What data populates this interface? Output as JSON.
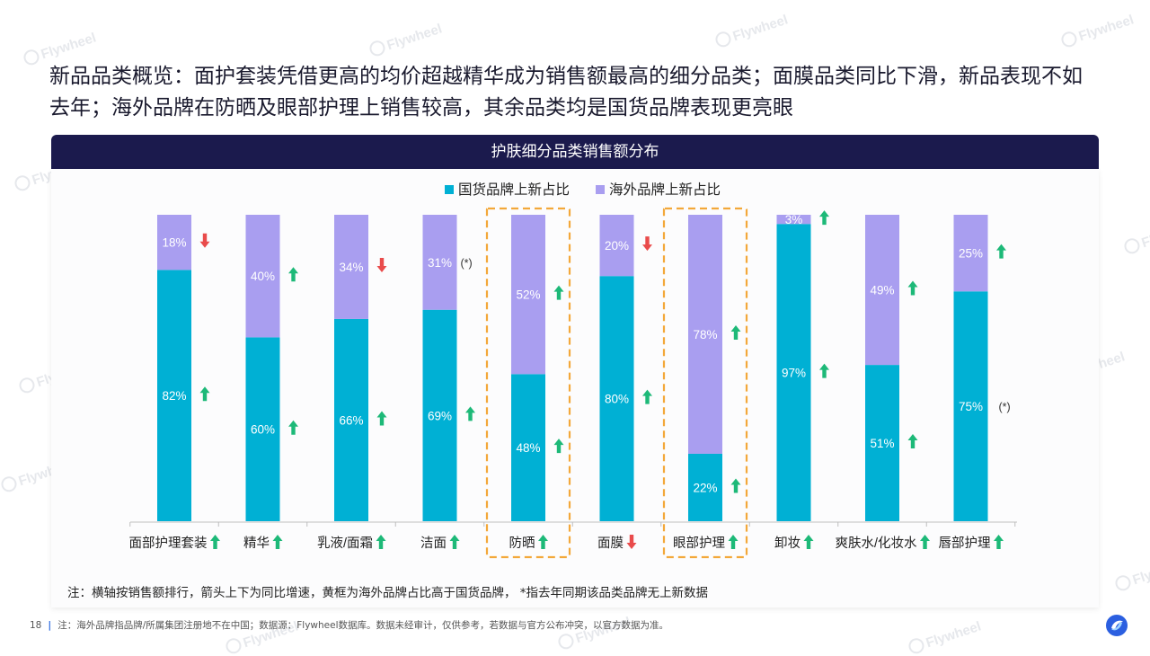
{
  "headline": "新品品类概览：面护套装凭借更高的均价超越精华成为销售额最高的细分品类；面膜品类同比下滑，新品表现不如去年；海外品牌在防晒及眼部护理上销售较高，其余品类均是国货品牌表现更亮眼",
  "watermark_text": "Flywheel",
  "chart_data": {
    "type": "bar",
    "stacked": true,
    "title": "护肤细分品类销售额分布",
    "legend_position": "top-center",
    "categories": [
      "面部护理套装",
      "精华",
      "乳液/面霜",
      "洁面",
      "防晒",
      "面膜",
      "眼部护理",
      "卸妆",
      "爽肤水/化妆水",
      "唇部护理"
    ],
    "category_arrows": [
      "up",
      "up",
      "up",
      "up",
      "up",
      "down",
      "up",
      "up",
      "up",
      "up"
    ],
    "series": [
      {
        "name": "国货品牌上新占比",
        "color": "#00b0d4",
        "values": [
          82,
          60,
          66,
          69,
          48,
          80,
          22,
          97,
          51,
          75
        ],
        "labels": [
          "82%",
          "60%",
          "66%",
          "69%",
          "48%",
          "80%",
          "22%",
          "97%",
          "51%",
          "75%"
        ],
        "arrows": [
          "up",
          "up",
          "up",
          "up",
          "up",
          "up",
          "up",
          "up",
          "up",
          "none"
        ],
        "notes": [
          "",
          "",
          "",
          "",
          "",
          "",
          "",
          "",
          "",
          "(*)"
        ]
      },
      {
        "name": "海外品牌上新占比",
        "color": "#a99ef0",
        "values": [
          18,
          40,
          34,
          31,
          52,
          20,
          78,
          3,
          49,
          25
        ],
        "labels": [
          "18%",
          "40%",
          "34%",
          "31%",
          "52%",
          "20%",
          "78%",
          "3%",
          "49%",
          "25%"
        ],
        "arrows": [
          "down",
          "up",
          "down",
          "none",
          "up",
          "down",
          "up",
          "up",
          "up",
          "up"
        ],
        "notes": [
          "",
          "",
          "",
          "(*)",
          "",
          "",
          "",
          "",
          "",
          ""
        ]
      }
    ],
    "highlighted_categories": [
      "防晒",
      "眼部护理"
    ],
    "ylim": [
      0,
      100
    ],
    "colors": {
      "up": "#1db978",
      "down": "#e94b4b",
      "highlight_box": "#f3a83a"
    }
  },
  "note": "注：横轴按销售额排行，箭头上下为同比增速，黄框为海外品牌占比高于国货品牌， *指去年同期该品类品牌无上新数据",
  "footer": {
    "page_number": "18",
    "separator": "|",
    "text": "注：海外品牌指品牌/所属集团注册地不在中国；数据源：Flywheel数据库。数据未经审计，仅供参考，若数据与官方公布冲突，以官方数据为准。"
  }
}
